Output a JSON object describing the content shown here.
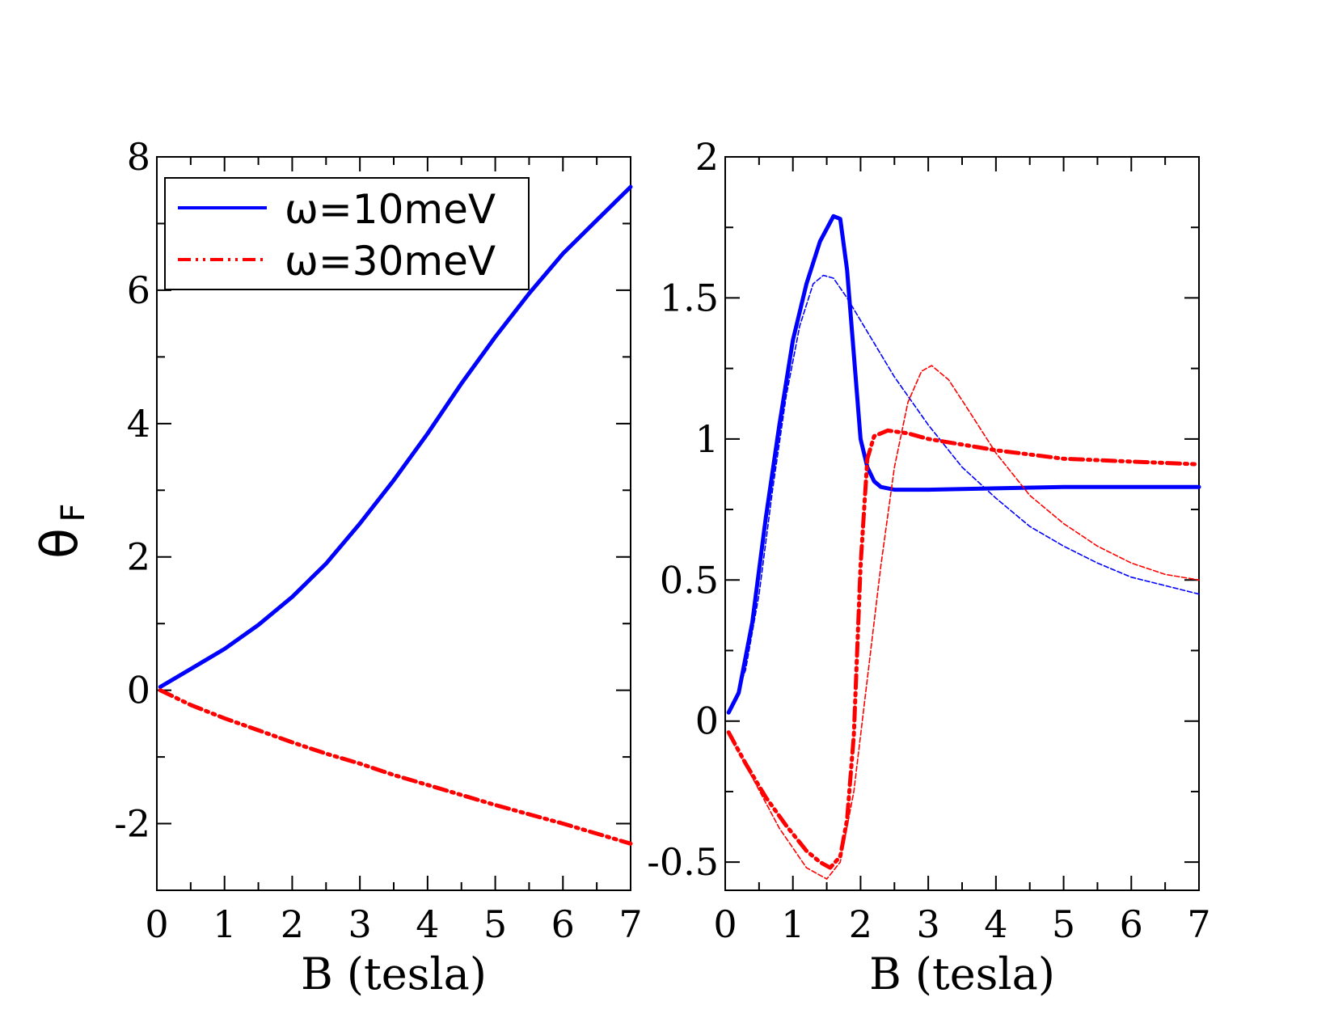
{
  "ylabel": "θ",
  "ylabel_sub": "F",
  "legend": [
    {
      "label": "ω=10meV",
      "color": "#0000ff",
      "style": "solid"
    },
    {
      "label": "ω=30meV",
      "color": "#ff0000",
      "style": "dash-dot-dot"
    }
  ],
  "chart_data": [
    {
      "type": "line",
      "xlabel": "B (tesla)",
      "xlim": [
        0,
        7
      ],
      "ylim": [
        -3,
        8
      ],
      "xticks": [
        "0",
        "1",
        "2",
        "3",
        "4",
        "5",
        "6",
        "7"
      ],
      "yticks": [
        "-2",
        "0",
        "2",
        "4",
        "6",
        "8"
      ],
      "ytick_values": [
        -2,
        0,
        2,
        4,
        6,
        8
      ],
      "grid": false,
      "legend_position": "top-left",
      "series": [
        {
          "name": "ω=10meV",
          "color": "#0000ff",
          "width": "thick",
          "dash": "solid",
          "x": [
            0.05,
            0.5,
            1,
            1.5,
            2,
            2.5,
            3,
            3.5,
            4,
            4.5,
            5,
            5.5,
            6,
            6.5,
            7
          ],
          "y": [
            0.05,
            0.32,
            0.62,
            0.98,
            1.4,
            1.9,
            2.5,
            3.15,
            3.85,
            4.6,
            5.3,
            5.95,
            6.55,
            7.05,
            7.55
          ]
        },
        {
          "name": "ω=30meV",
          "color": "#ff0000",
          "width": "thick",
          "dash": "dash-dot-dot",
          "x": [
            0.05,
            0.5,
            1,
            1.5,
            2,
            2.5,
            3,
            3.5,
            4,
            4.5,
            5,
            5.5,
            6,
            6.5,
            7
          ],
          "y": [
            0.0,
            -0.22,
            -0.42,
            -0.6,
            -0.78,
            -0.95,
            -1.1,
            -1.27,
            -1.42,
            -1.57,
            -1.72,
            -1.86,
            -2.0,
            -2.15,
            -2.3
          ]
        }
      ]
    },
    {
      "type": "line",
      "xlabel": "B (tesla)",
      "xlim": [
        0,
        7
      ],
      "ylim": [
        -0.6,
        2
      ],
      "xticks": [
        "0",
        "1",
        "2",
        "3",
        "4",
        "5",
        "6",
        "7"
      ],
      "yticks": [
        "-0.5",
        "0",
        "0.5",
        "1",
        "1.5",
        "2"
      ],
      "ytick_values": [
        -0.5,
        0,
        0.5,
        1,
        1.5,
        2
      ],
      "grid": false,
      "series": [
        {
          "name": "ω=10meV",
          "color": "#0000ff",
          "width": "thick",
          "dash": "solid",
          "x": [
            0.05,
            0.2,
            0.4,
            0.6,
            0.8,
            1.0,
            1.2,
            1.4,
            1.6,
            1.7,
            1.8,
            1.9,
            2.0,
            2.1,
            2.2,
            2.3,
            2.5,
            3.0,
            4.0,
            5.0,
            6.0,
            7.0
          ],
          "y": [
            0.03,
            0.1,
            0.35,
            0.72,
            1.05,
            1.35,
            1.55,
            1.7,
            1.79,
            1.78,
            1.6,
            1.3,
            1.0,
            0.9,
            0.85,
            0.83,
            0.82,
            0.82,
            0.825,
            0.83,
            0.83,
            0.83
          ]
        },
        {
          "name": "ω=10meV",
          "color": "#0000ff",
          "width": "thin",
          "dash": "dashed",
          "x": [
            0.1,
            0.3,
            0.5,
            0.7,
            0.9,
            1.1,
            1.3,
            1.45,
            1.6,
            1.8,
            2.0,
            2.5,
            3.0,
            3.5,
            4.0,
            4.5,
            5.0,
            5.5,
            6.0,
            6.5,
            7.0
          ],
          "y": [
            0.05,
            0.18,
            0.45,
            0.82,
            1.15,
            1.4,
            1.55,
            1.58,
            1.57,
            1.5,
            1.42,
            1.22,
            1.05,
            0.9,
            0.79,
            0.69,
            0.62,
            0.56,
            0.51,
            0.48,
            0.45
          ]
        },
        {
          "name": "ω=30meV",
          "color": "#ff0000",
          "width": "thick",
          "dash": "dash-dot-dot",
          "x": [
            0.05,
            0.3,
            0.6,
            0.9,
            1.2,
            1.4,
            1.55,
            1.7,
            1.8,
            1.9,
            2.0,
            2.1,
            2.2,
            2.4,
            2.7,
            3.0,
            3.5,
            4.0,
            5.0,
            6.0,
            7.0
          ],
          "y": [
            -0.04,
            -0.15,
            -0.27,
            -0.37,
            -0.46,
            -0.5,
            -0.52,
            -0.48,
            -0.35,
            -0.05,
            0.55,
            0.93,
            1.01,
            1.03,
            1.02,
            1.0,
            0.98,
            0.96,
            0.93,
            0.92,
            0.91
          ]
        },
        {
          "name": "ω=30meV",
          "color": "#ff0000",
          "width": "thin",
          "dash": "dashed",
          "x": [
            0.05,
            0.4,
            0.8,
            1.2,
            1.5,
            1.7,
            1.9,
            2.1,
            2.3,
            2.5,
            2.7,
            2.9,
            3.05,
            3.3,
            3.6,
            4.0,
            4.5,
            5.0,
            5.5,
            6.0,
            6.5,
            7.0
          ],
          "y": [
            -0.05,
            -0.2,
            -0.38,
            -0.52,
            -0.56,
            -0.5,
            -0.25,
            0.15,
            0.55,
            0.9,
            1.13,
            1.24,
            1.26,
            1.21,
            1.1,
            0.95,
            0.8,
            0.7,
            0.62,
            0.56,
            0.52,
            0.5
          ]
        }
      ]
    }
  ]
}
